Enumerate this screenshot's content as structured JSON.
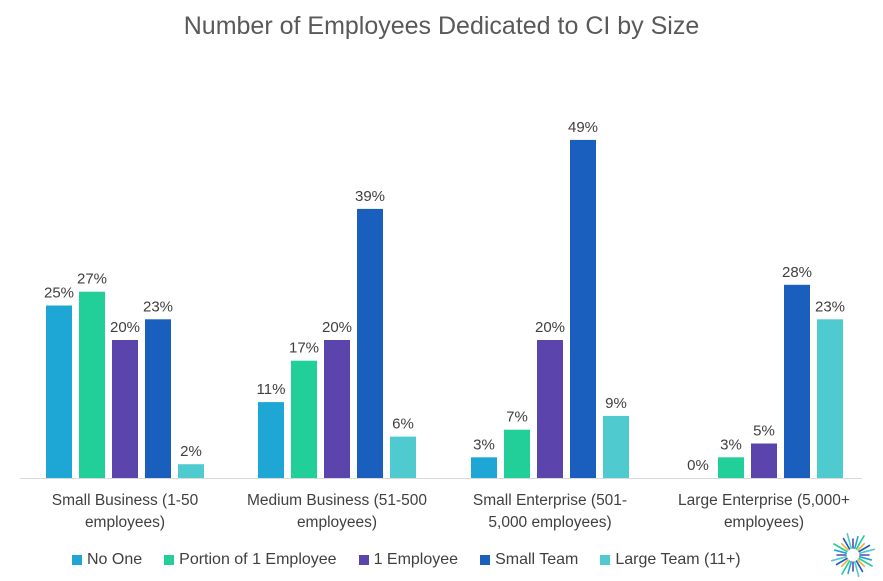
{
  "chart_data": {
    "type": "bar",
    "title": "Number of Employees Dedicated to CI by Size",
    "categories": [
      [
        "Small Business (1-50",
        "employees)"
      ],
      [
        "Medium Business (51-500",
        "employees)"
      ],
      [
        "Small Enterprise (501-",
        "5,000 employees)"
      ],
      [
        "Large Enterprise (5,000+",
        "employees)"
      ]
    ],
    "series": [
      {
        "name": "No One",
        "color": "#1ea7d4",
        "values": [
          25,
          11,
          3,
          0
        ]
      },
      {
        "name": "Portion of 1 Employee",
        "color": "#22cf98",
        "values": [
          27,
          17,
          7,
          3
        ]
      },
      {
        "name": "1 Employee",
        "color": "#5b45ad",
        "values": [
          20,
          20,
          20,
          5
        ]
      },
      {
        "name": "Small Team",
        "color": "#1a5fbe",
        "values": [
          23,
          39,
          49,
          28
        ]
      },
      {
        "name": "Large Team (11+)",
        "color": "#4fcbd0",
        "values": [
          2,
          6,
          9,
          23
        ]
      }
    ],
    "value_suffix": "%",
    "ylim": [
      0,
      50
    ],
    "grid": false,
    "legend_position": "bottom"
  }
}
